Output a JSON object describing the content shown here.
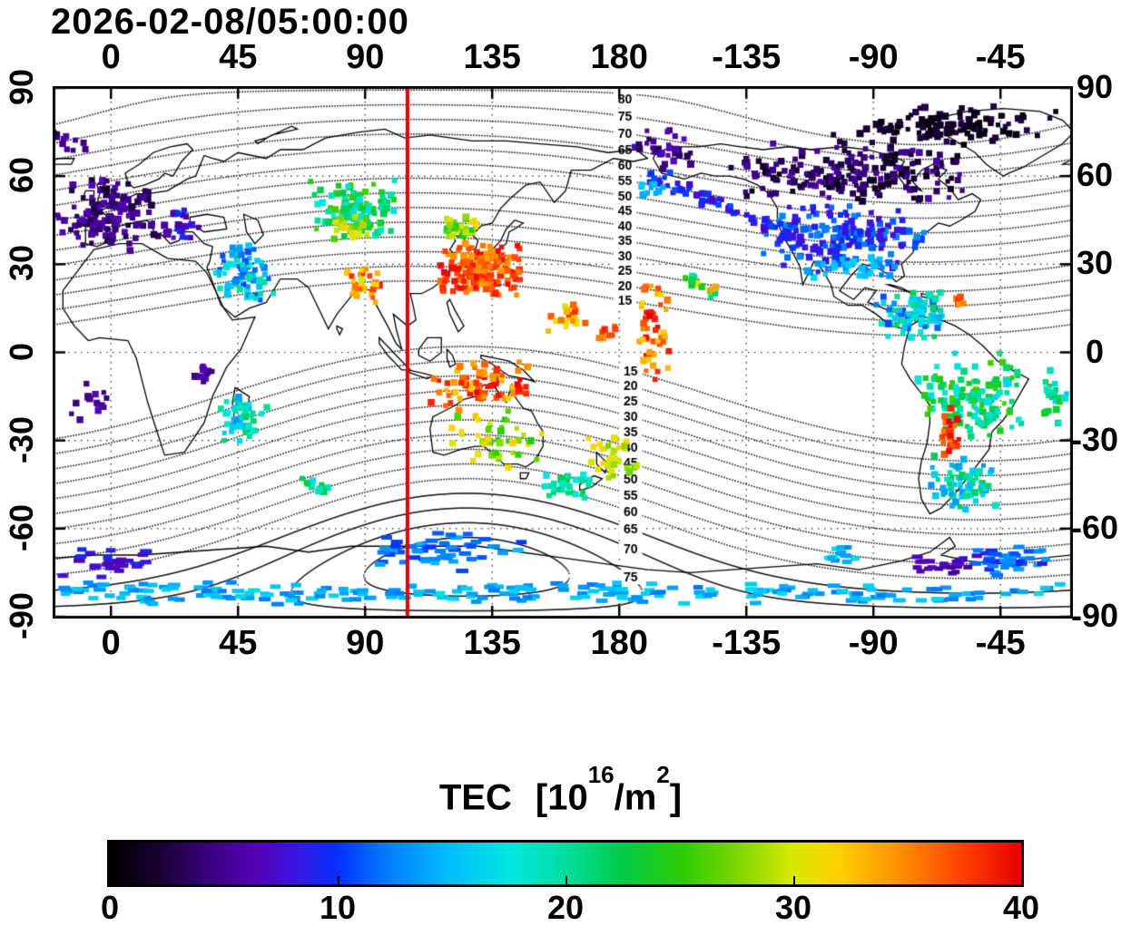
{
  "title": "2026-02-08/05:00:00",
  "axes": {
    "lon_ticks": [
      {
        "label": "0",
        "lon": 0
      },
      {
        "label": "45",
        "lon": 45
      },
      {
        "label": "90",
        "lon": 90
      },
      {
        "label": "135",
        "lon": 135
      },
      {
        "label": "180",
        "lon": 180
      },
      {
        "label": "-135",
        "lon": 225
      },
      {
        "label": "-90",
        "lon": 270
      },
      {
        "label": "-45",
        "lon": 315
      }
    ],
    "lat_ticks": [
      {
        "label": "90",
        "lat": 90
      },
      {
        "label": "60",
        "lat": 60
      },
      {
        "label": "30",
        "lat": 30
      },
      {
        "label": "0",
        "lat": 0
      },
      {
        "label": "-30",
        "lat": -30
      },
      {
        "label": "-60",
        "lat": -60
      },
      {
        "label": "-90",
        "lat": -90
      }
    ]
  },
  "colorbar": {
    "title": {
      "name": "TEC",
      "unit_prefix": "[10",
      "exp1": "16",
      "unit_mid": "/m",
      "exp2": "2",
      "suffix": "]"
    },
    "min": 0,
    "max": 40,
    "ticks": [
      {
        "label": "0",
        "value": 0
      },
      {
        "label": "10",
        "value": 10
      },
      {
        "label": "20",
        "value": 20
      },
      {
        "label": "30",
        "value": 30
      },
      {
        "label": "40",
        "value": 40
      }
    ]
  },
  "chart_data": {
    "type": "heatmap",
    "title": "2026-02-08/05:00:00",
    "colorbar_label": "TEC [10^16/m^2]",
    "value_range": [
      0,
      40
    ],
    "lon_range": [
      -20,
      340
    ],
    "lat_range": [
      -90,
      90
    ],
    "grid": {
      "lon_step": 45,
      "lat_step": 30,
      "style": "dotted"
    },
    "noon_meridian": {
      "lon": 105,
      "color": "#e60000"
    },
    "colormap_stops": [
      [
        0.0,
        "#000000"
      ],
      [
        0.05,
        "#16002e"
      ],
      [
        0.11,
        "#3a0080"
      ],
      [
        0.16,
        "#5500b4"
      ],
      [
        0.2,
        "#3d13dd"
      ],
      [
        0.25,
        "#0531ff"
      ],
      [
        0.3,
        "#0077ff"
      ],
      [
        0.37,
        "#00bbff"
      ],
      [
        0.44,
        "#00e6e0"
      ],
      [
        0.5,
        "#00dd9f"
      ],
      [
        0.56,
        "#00cc4d"
      ],
      [
        0.63,
        "#2ecc00"
      ],
      [
        0.7,
        "#8ed800"
      ],
      [
        0.75,
        "#d8e800"
      ],
      [
        0.8,
        "#ffd000"
      ],
      [
        0.87,
        "#ff8c00"
      ],
      [
        0.94,
        "#ff3c00"
      ],
      [
        1.0,
        "#e60000"
      ]
    ],
    "contours": {
      "field": "geomagnetic-latitude",
      "levels": [
        15,
        20,
        25,
        30,
        35,
        40,
        45,
        50,
        55,
        60,
        65,
        70,
        75,
        80
      ],
      "label_lon_north": 182,
      "label_lon_south": 184,
      "south_max_label": 75
    },
    "clusters": [
      {
        "region": "arctic-atlantic",
        "lon": -14,
        "lat": 71,
        "dlon": 6,
        "dlat": 4,
        "n": 10,
        "tec": [
          3,
          6
        ]
      },
      {
        "region": "western-europe",
        "lon": 0,
        "lat": 47,
        "dlon": 20,
        "dlat": 13,
        "n": 140,
        "tec": [
          2,
          7
        ]
      },
      {
        "region": "eastern-europe",
        "lon": 27,
        "lat": 43,
        "dlon": 9,
        "dlat": 7,
        "n": 22,
        "tec": [
          5,
          10
        ]
      },
      {
        "region": "middle-east",
        "lon": 46,
        "lat": 28,
        "dlon": 12,
        "dlat": 12,
        "n": 80,
        "tec": [
          10,
          20
        ]
      },
      {
        "region": "central-asia",
        "lon": 87,
        "lat": 49,
        "dlon": 17,
        "dlat": 11,
        "n": 110,
        "tec": [
          17,
          26
        ]
      },
      {
        "region": "central-asia-yellow",
        "lon": 85,
        "lat": 43,
        "dlon": 8,
        "dlat": 5,
        "n": 25,
        "tec": [
          26,
          32
        ]
      },
      {
        "region": "south-asia",
        "lon": 91,
        "lat": 24,
        "dlon": 8,
        "dlat": 8,
        "n": 30,
        "tec": [
          29,
          40
        ]
      },
      {
        "region": "east-asia-north-fringe",
        "lon": 124,
        "lat": 43,
        "dlon": 10,
        "dlat": 4,
        "n": 35,
        "tec": [
          23,
          32
        ]
      },
      {
        "region": "east-asia-core",
        "lon": 131,
        "lat": 28,
        "dlon": 17,
        "dlat": 10,
        "n": 180,
        "tec": [
          34,
          40
        ]
      },
      {
        "region": "west-pacific",
        "lon": 161,
        "lat": 12,
        "dlon": 8,
        "dlat": 6,
        "n": 22,
        "tec": [
          30,
          38
        ]
      },
      {
        "region": "equatorial-pacific-column",
        "lon": 192,
        "lat": 8,
        "dlon": 6,
        "dlat": 20,
        "n": 50,
        "tec": [
          31,
          40
        ]
      },
      {
        "region": "pacific-streak",
        "lon": 203,
        "lat": 26,
        "lon2": 214,
        "lat2": 20,
        "dlon": 2,
        "dlat": 2,
        "n": 16,
        "tec": [
          20,
          40
        ]
      },
      {
        "region": "pacific-red-dots",
        "lon": 176,
        "lat": 7,
        "dlon": 5,
        "dlat": 4,
        "n": 10,
        "tec": [
          33,
          39
        ]
      },
      {
        "region": "indonesia",
        "lon": 130,
        "lat": -11,
        "dlon": 22,
        "dlat": 9,
        "n": 85,
        "tec": [
          32,
          40
        ]
      },
      {
        "region": "australia",
        "lon": 135,
        "lat": -30,
        "dlon": 20,
        "dlat": 11,
        "n": 42,
        "tec": [
          24,
          33
        ]
      },
      {
        "region": "new-zealand-north",
        "lon": 177,
        "lat": -35,
        "dlon": 10,
        "dlat": 8,
        "n": 32,
        "tec": [
          27,
          32
        ]
      },
      {
        "region": "tasman-sea",
        "lon": 161,
        "lat": -46,
        "dlon": 11,
        "dlat": 6,
        "n": 30,
        "tec": [
          17,
          23
        ]
      },
      {
        "region": "s-indian-ocean",
        "lon": 71,
        "lat": -46,
        "dlon": 8,
        "dlat": 5,
        "n": 15,
        "tec": [
          17,
          23
        ]
      },
      {
        "region": "antarctic-indian",
        "lon": 116,
        "lat": -68,
        "dlon": 33,
        "dlat": 7,
        "n": 55,
        "tec": [
          10,
          15
        ],
        "w": 12,
        "h": 5
      },
      {
        "region": "antarctic-coast-band",
        "lon": 160,
        "lat": -82,
        "dlon": 180,
        "dlat": 4,
        "n": 230,
        "tec": [
          12,
          17
        ],
        "w": 12,
        "h": 5
      },
      {
        "region": "antarctic-atlantic",
        "lon": -2,
        "lat": -71,
        "dlon": 18,
        "dlat": 6,
        "n": 28,
        "tec": [
          6,
          10
        ],
        "w": 12,
        "h": 5
      },
      {
        "region": "caribbean",
        "lon": 284,
        "lat": 13,
        "dlon": 16,
        "dlat": 10,
        "n": 85,
        "tec": [
          10,
          22
        ]
      },
      {
        "region": "caribbean-red",
        "lon": 300,
        "lat": 17,
        "dlon": 3,
        "dlat": 3,
        "n": 7,
        "tec": [
          34,
          40
        ]
      },
      {
        "region": "south-america-core",
        "lon": 305,
        "lat": -15,
        "dlon": 20,
        "dlat": 15,
        "n": 150,
        "tec": [
          16,
          26
        ]
      },
      {
        "region": "andes-red-streak",
        "lon": 297,
        "lat": -27,
        "dlon": 4,
        "dlat": 9,
        "n": 28,
        "tec": [
          35,
          40
        ]
      },
      {
        "region": "south-america-south",
        "lon": 302,
        "lat": -45,
        "dlon": 13,
        "dlat": 11,
        "n": 70,
        "tec": [
          13,
          23
        ]
      },
      {
        "region": "atlantic-east-edge",
        "lon": 334,
        "lat": -14,
        "dlon": 6,
        "dlat": 13,
        "n": 26,
        "tec": [
          15,
          25
        ]
      },
      {
        "region": "north-america-mid",
        "lon": 259,
        "lat": 40,
        "dlon": 30,
        "dlat": 13,
        "n": 170,
        "tec": [
          7,
          13
        ]
      },
      {
        "region": "north-america-south-fringe",
        "lon": 262,
        "lat": 29,
        "dlon": 20,
        "dlat": 5,
        "n": 40,
        "tec": [
          12,
          17
        ]
      },
      {
        "region": "canada-dark",
        "lon": 262,
        "lat": 61,
        "dlon": 48,
        "dlat": 11,
        "n": 210,
        "tec": [
          1,
          6
        ]
      },
      {
        "region": "arctic-america-black",
        "lon": 295,
        "lat": 77,
        "dlon": 43,
        "dlat": 7,
        "n": 130,
        "tec": [
          0,
          3
        ]
      },
      {
        "region": "bering-purple",
        "lon": 196,
        "lat": 69,
        "dlon": 12,
        "dlat": 9,
        "n": 30,
        "tec": [
          3,
          7
        ]
      },
      {
        "region": "north-pacific-track",
        "lon": 189,
        "lat": 62,
        "lon2": 247,
        "lat2": 37,
        "dlon": 3,
        "dlat": 3,
        "n": 70,
        "tec": [
          7,
          11
        ]
      },
      {
        "region": "north-pacific-cyan",
        "lon": 191,
        "lat": 55,
        "dlon": 7,
        "dlat": 4,
        "n": 12,
        "tec": [
          13,
          16
        ]
      },
      {
        "region": "central-africa-purple",
        "lon": 34,
        "lat": -7,
        "dlon": 7,
        "dlat": 4,
        "n": 12,
        "tec": [
          4,
          7
        ]
      },
      {
        "region": "se-africa",
        "lon": 47,
        "lat": -22,
        "dlon": 9,
        "dlat": 10,
        "n": 48,
        "tec": [
          13,
          22
        ]
      },
      {
        "region": "south-atlantic-purple",
        "lon": -7,
        "lat": -18,
        "dlon": 9,
        "dlat": 8,
        "n": 15,
        "tec": [
          4,
          7
        ]
      },
      {
        "region": "antarctic-pacific-green",
        "lon": 259,
        "lat": -69,
        "dlon": 7,
        "dlat": 4,
        "n": 14,
        "tec": [
          12,
          18
        ],
        "w": 10,
        "h": 5
      },
      {
        "region": "antarctic-sa-blue",
        "lon": 318,
        "lat": -71,
        "dlon": 20,
        "dlat": 6,
        "n": 45,
        "tec": [
          8,
          14
        ],
        "w": 11,
        "h": 5
      },
      {
        "region": "antarctic-sa-dark",
        "lon": 296,
        "lat": -73,
        "dlon": 12,
        "dlat": 4,
        "n": 22,
        "tec": [
          5,
          8
        ],
        "w": 11,
        "h": 5
      }
    ]
  }
}
